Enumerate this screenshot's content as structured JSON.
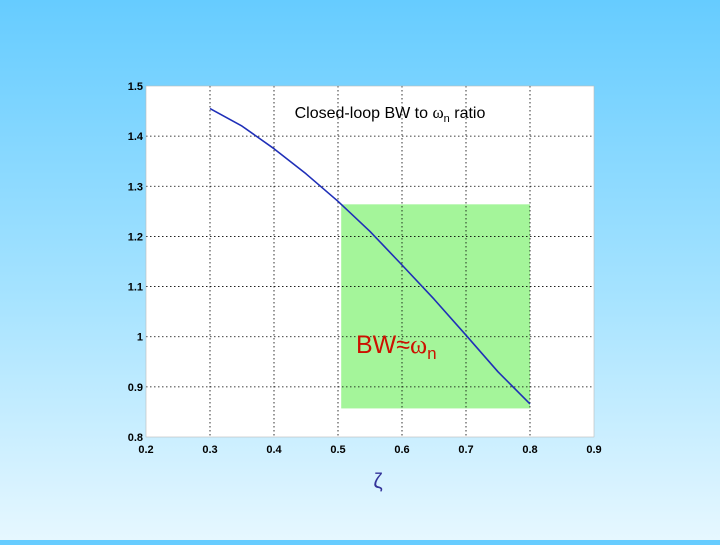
{
  "chart_data": {
    "type": "line",
    "title": "Closed-loop BW to ωn ratio",
    "title_parts": {
      "pre": "Closed-loop BW to ",
      "sym": "ω",
      "sub": "n",
      "post": " ratio"
    },
    "xlabel": "ζ",
    "ylabel": "",
    "xlim": [
      0.2,
      0.9
    ],
    "ylim": [
      0.8,
      1.5
    ],
    "xticks": [
      "0.2",
      "0.3",
      "0.4",
      "0.5",
      "0.6",
      "0.7",
      "0.8",
      "0.9"
    ],
    "yticks": [
      "0.8",
      "0.9",
      "1",
      "1.1",
      "1.2",
      "1.3",
      "1.4",
      "1.5"
    ],
    "grid": true,
    "series": [
      {
        "x": [
          0.3,
          0.35,
          0.4,
          0.45,
          0.5,
          0.55,
          0.6,
          0.65,
          0.7,
          0.75,
          0.8
        ],
        "y": [
          1.455,
          1.42,
          1.375,
          1.325,
          1.27,
          1.21,
          1.143,
          1.075,
          1.003,
          0.93,
          0.866
        ],
        "color": "#1f2fb8"
      }
    ],
    "highlight": {
      "x_range": [
        0.505,
        0.8
      ],
      "y_range": [
        0.857,
        1.264
      ],
      "color": "#a4f59a",
      "label_text": "BW≈",
      "label_sym": "ω",
      "label_sub": "n",
      "label_color": "#cc1100"
    }
  }
}
